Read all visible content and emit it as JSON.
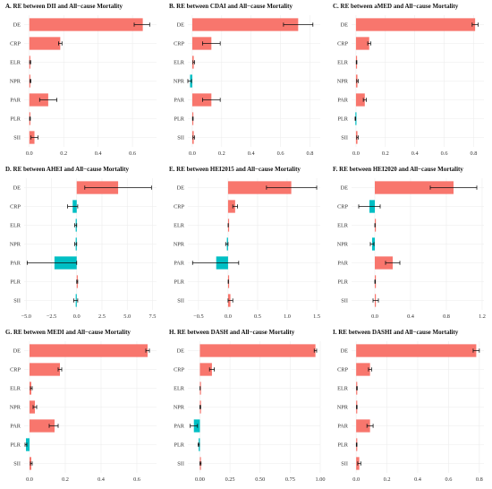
{
  "chart_data": [
    {
      "type": "bar",
      "title": "A. RE between DII and All−cause Mortality",
      "categories": [
        "DE",
        "CRP",
        "ELR",
        "NPR",
        "PAR",
        "PLR",
        "SII"
      ],
      "values": [
        0.66,
        0.18,
        0.005,
        0.006,
        0.11,
        0.004,
        0.03
      ],
      "ci_low": [
        0.61,
        0.17,
        0.002,
        0.003,
        0.06,
        0.002,
        0.01
      ],
      "ci_high": [
        0.7,
        0.19,
        0.008,
        0.009,
        0.16,
        0.006,
        0.05
      ],
      "xlim": [
        -0.03,
        0.74
      ],
      "xticks": [
        0.0,
        0.2,
        0.4,
        0.6
      ],
      "tick_labels": [
        "0.0",
        "0.2",
        "0.4",
        "0.6"
      ]
    },
    {
      "type": "bar",
      "title": "B. RE between CDAI and All−cause Mortality",
      "categories": [
        "DE",
        "CRP",
        "ELR",
        "NPR",
        "PAR",
        "PLR",
        "SII"
      ],
      "values": [
        0.72,
        0.13,
        0.01,
        -0.015,
        0.13,
        0.004,
        0.01
      ],
      "ci_low": [
        0.62,
        0.07,
        0.005,
        -0.03,
        0.07,
        0.002,
        0.005
      ],
      "ci_high": [
        0.82,
        0.19,
        0.015,
        -0.005,
        0.19,
        0.006,
        0.015
      ],
      "xlim": [
        -0.03,
        0.87
      ],
      "xticks": [
        0.0,
        0.2,
        0.4,
        0.6,
        0.8
      ],
      "tick_labels": [
        "0.0",
        "0.2",
        "0.4",
        "0.6",
        "0.8"
      ]
    },
    {
      "type": "bar",
      "title": "C. RE between aMED and All−cause Mortality",
      "categories": [
        "DE",
        "CRP",
        "ELR",
        "NPR",
        "PAR",
        "PLR",
        "SII"
      ],
      "values": [
        0.81,
        0.09,
        0.004,
        0.01,
        0.06,
        -0.004,
        0.01
      ],
      "ci_low": [
        0.79,
        0.08,
        0.002,
        0.005,
        0.05,
        -0.006,
        0.005
      ],
      "ci_high": [
        0.83,
        0.1,
        0.006,
        0.015,
        0.07,
        -0.002,
        0.015
      ],
      "xlim": [
        -0.03,
        0.87
      ],
      "xticks": [
        0.0,
        0.2,
        0.4,
        0.6,
        0.8
      ],
      "tick_labels": [
        "0.0",
        "0.2",
        "0.4",
        "0.6",
        "0.8"
      ]
    },
    {
      "type": "bar",
      "title": "D. RE between AHEI and All−cause Mortality",
      "categories": [
        "DE",
        "CRP",
        "ELR",
        "NPR",
        "PAR",
        "PLR",
        "SII"
      ],
      "values": [
        4.1,
        -0.4,
        -0.1,
        -0.1,
        -2.2,
        0.05,
        -0.1
      ],
      "ci_low": [
        0.8,
        -0.9,
        -0.2,
        -0.2,
        -4.9,
        0.0,
        -0.3
      ],
      "ci_high": [
        7.4,
        0.1,
        0.0,
        0.0,
        0.0,
        0.1,
        0.1
      ],
      "xlim": [
        -5.2,
        7.9
      ],
      "xticks": [
        -5.0,
        -2.5,
        0.0,
        2.5,
        5.0,
        7.5
      ],
      "tick_labels": [
        "−5.0",
        "−2.5",
        "0.0",
        "2.5",
        "5.0",
        "7.5"
      ]
    },
    {
      "type": "bar",
      "title": "E. RE between HEI2015 and All−cause Mortality",
      "categories": [
        "DE",
        "CRP",
        "ELR",
        "NPR",
        "PAR",
        "PLR",
        "SII"
      ],
      "values": [
        1.07,
        0.12,
        0.003,
        -0.02,
        -0.2,
        0.005,
        0.04
      ],
      "ci_low": [
        0.65,
        0.08,
        0.001,
        -0.04,
        -0.6,
        0.002,
        0.0
      ],
      "ci_high": [
        1.5,
        0.16,
        0.005,
        0.0,
        0.18,
        0.008,
        0.08
      ],
      "xlim": [
        -0.68,
        1.56
      ],
      "xticks": [
        -0.5,
        0.0,
        0.5,
        1.0,
        1.5
      ],
      "tick_labels": [
        "−0.5",
        "0.0",
        "0.5",
        "1.0",
        "1.5"
      ]
    },
    {
      "type": "bar",
      "title": "F. RE between HEI2020 and All−cause Mortality",
      "categories": [
        "DE",
        "CRP",
        "ELR",
        "NPR",
        "PAR",
        "PLR",
        "SII"
      ],
      "values": [
        0.88,
        -0.06,
        0.002,
        -0.03,
        0.2,
        0.003,
        0.01
      ],
      "ci_low": [
        0.62,
        -0.18,
        0.0,
        -0.05,
        0.12,
        0.0,
        -0.02
      ],
      "ci_high": [
        1.14,
        0.06,
        0.004,
        -0.01,
        0.28,
        0.006,
        0.04
      ],
      "xlim": [
        -0.26,
        1.22
      ],
      "xticks": [
        0.0,
        0.4,
        0.8,
        1.2
      ],
      "tick_labels": [
        "0.0",
        "0.4",
        "0.8",
        "1.2"
      ]
    },
    {
      "type": "bar",
      "title": "G. RE between MEDI and All−cause Mortality",
      "categories": [
        "DE",
        "CRP",
        "ELR",
        "NPR",
        "PAR",
        "PLR",
        "SII"
      ],
      "values": [
        0.66,
        0.17,
        0.01,
        0.03,
        0.14,
        -0.02,
        0.01
      ],
      "ci_low": [
        0.65,
        0.16,
        0.005,
        0.02,
        0.11,
        -0.025,
        0.005
      ],
      "ci_high": [
        0.67,
        0.18,
        0.015,
        0.04,
        0.16,
        -0.015,
        0.015
      ],
      "xlim": [
        -0.03,
        0.71
      ],
      "xticks": [
        0.0,
        0.2,
        0.4,
        0.6
      ],
      "tick_labels": [
        "0.0",
        "0.2",
        "0.4",
        "0.6"
      ]
    },
    {
      "type": "bar",
      "title": "H. RE between DASH and All−cause Mortality",
      "categories": [
        "DE",
        "CRP",
        "ELR",
        "NPR",
        "PAR",
        "PLR",
        "SII"
      ],
      "values": [
        0.96,
        0.1,
        0.002,
        0.003,
        -0.05,
        -0.01,
        0.005
      ],
      "ci_low": [
        0.95,
        0.08,
        0.001,
        0.0,
        -0.08,
        -0.015,
        0.0
      ],
      "ci_high": [
        0.97,
        0.12,
        0.003,
        0.006,
        -0.02,
        -0.005,
        0.01
      ],
      "xlim": [
        -0.1,
        1.0
      ],
      "xticks": [
        0.0,
        0.25,
        0.5,
        0.75,
        1.0
      ],
      "tick_labels": [
        "0.00",
        "0.25",
        "0.50",
        "0.75",
        "1.00"
      ]
    },
    {
      "type": "bar",
      "title": "I. RE between DASHI and All−cause Mortality",
      "categories": [
        "DE",
        "CRP",
        "ELR",
        "NPR",
        "PAR",
        "PLR",
        "SII"
      ],
      "values": [
        0.78,
        0.09,
        0.005,
        0.004,
        0.09,
        0.003,
        0.02
      ],
      "ci_low": [
        0.76,
        0.08,
        0.003,
        0.002,
        0.07,
        0.001,
        0.01
      ],
      "ci_high": [
        0.8,
        0.1,
        0.007,
        0.006,
        0.11,
        0.005,
        0.03
      ],
      "xlim": [
        -0.03,
        0.83
      ],
      "xticks": [
        0.0,
        0.2,
        0.4,
        0.6,
        0.8
      ],
      "tick_labels": [
        "0.0",
        "0.2",
        "0.4",
        "0.6",
        "0.8"
      ]
    }
  ],
  "colors": {
    "positive": "#F8766D",
    "negative": "#00BFC4",
    "grid": "#ececec"
  },
  "grid": true,
  "legend": "none"
}
